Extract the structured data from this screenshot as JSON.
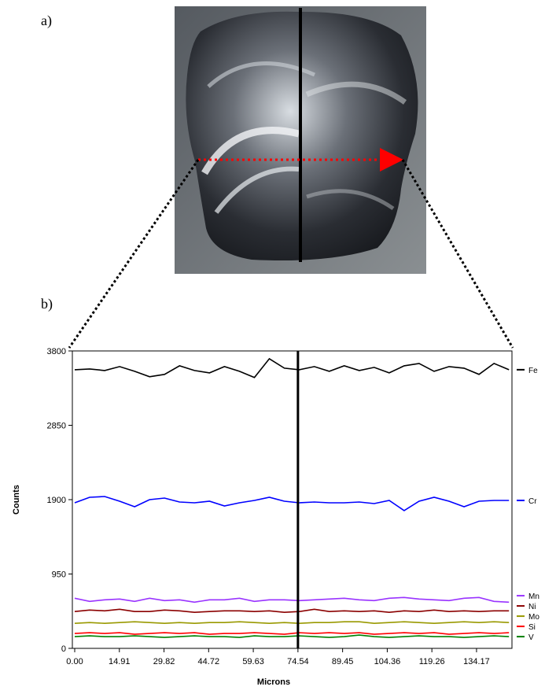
{
  "panels": {
    "a": "a)",
    "b": "b)"
  },
  "chart_data": {
    "type": "line",
    "xlabel": "Microns",
    "ylabel": "Counts",
    "xlim": [
      0,
      146
    ],
    "ylim": [
      0,
      3800
    ],
    "xticks": [
      {
        "value": 0,
        "label": "0.00"
      },
      14.91,
      29.82,
      44.72,
      59.63,
      74.54,
      89.45,
      104.36,
      119.26,
      134.17
    ],
    "yticks": [
      0,
      950,
      1900,
      2850,
      3800
    ],
    "grid": false,
    "marker_x": 74.54,
    "x": [
      0,
      5,
      10,
      15,
      20,
      25,
      30,
      35,
      40,
      45,
      50,
      55,
      60,
      65,
      70,
      75,
      80,
      85,
      90,
      95,
      100,
      105,
      110,
      115,
      120,
      125,
      130,
      135,
      140,
      145
    ],
    "series": [
      {
        "name": "Fe",
        "color": "#000000",
        "values": [
          3560,
          3570,
          3550,
          3600,
          3540,
          3470,
          3500,
          3610,
          3550,
          3520,
          3600,
          3540,
          3460,
          3700,
          3580,
          3560,
          3600,
          3540,
          3610,
          3550,
          3590,
          3520,
          3610,
          3640,
          3540,
          3600,
          3580,
          3500,
          3640,
          3560
        ]
      },
      {
        "name": "Cr",
        "color": "#0000ff",
        "values": [
          1860,
          1930,
          1940,
          1880,
          1810,
          1900,
          1920,
          1870,
          1860,
          1880,
          1820,
          1860,
          1890,
          1930,
          1880,
          1860,
          1870,
          1860,
          1860,
          1870,
          1850,
          1890,
          1760,
          1880,
          1930,
          1880,
          1810,
          1880,
          1890,
          1890
        ]
      },
      {
        "name": "Mn",
        "color": "#9933ff",
        "values": [
          640,
          600,
          620,
          630,
          600,
          640,
          610,
          620,
          590,
          620,
          620,
          640,
          600,
          620,
          620,
          610,
          620,
          630,
          640,
          620,
          610,
          640,
          650,
          630,
          620,
          610,
          640,
          650,
          600,
          590
        ]
      },
      {
        "name": "Ni",
        "color": "#8b0000",
        "values": [
          470,
          490,
          480,
          500,
          470,
          470,
          490,
          480,
          460,
          470,
          480,
          480,
          470,
          480,
          460,
          470,
          500,
          470,
          480,
          470,
          480,
          460,
          480,
          470,
          490,
          470,
          480,
          470,
          480,
          480
        ]
      },
      {
        "name": "Mo",
        "color": "#999900",
        "values": [
          320,
          330,
          320,
          330,
          340,
          330,
          320,
          330,
          320,
          330,
          330,
          340,
          330,
          320,
          330,
          320,
          330,
          330,
          340,
          340,
          320,
          330,
          340,
          330,
          320,
          330,
          340,
          330,
          340,
          330
        ]
      },
      {
        "name": "Si",
        "color": "#ff0000",
        "values": [
          190,
          200,
          190,
          200,
          180,
          190,
          200,
          190,
          200,
          180,
          190,
          190,
          200,
          190,
          180,
          200,
          190,
          200,
          190,
          200,
          180,
          190,
          200,
          190,
          200,
          180,
          190,
          200,
          190,
          200
        ]
      },
      {
        "name": "V",
        "color": "#008000",
        "values": [
          150,
          160,
          150,
          150,
          160,
          150,
          140,
          150,
          160,
          150,
          150,
          140,
          160,
          150,
          150,
          160,
          150,
          140,
          150,
          170,
          150,
          140,
          150,
          160,
          150,
          150,
          140,
          150,
          160,
          150
        ]
      }
    ]
  }
}
